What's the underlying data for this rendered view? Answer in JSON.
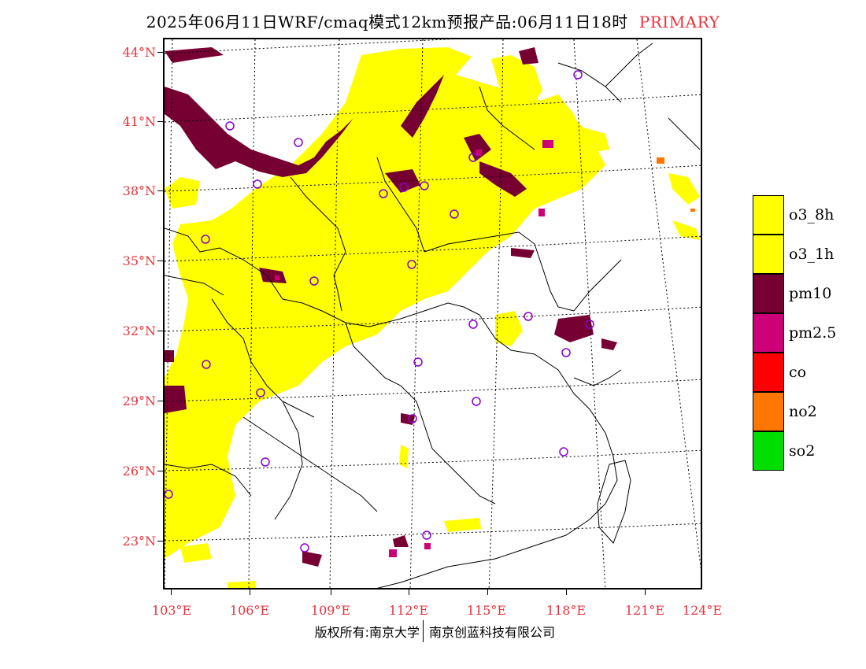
{
  "title": {
    "main": "2025年06月11日WRF/cmaq模式12km预报产品:06月11日18时",
    "tag": "PRIMARY"
  },
  "map": {
    "lat_labels": [
      "44°N",
      "41°N",
      "38°N",
      "35°N",
      "32°N",
      "29°N",
      "26°N",
      "23°N"
    ],
    "lon_labels": [
      "103°E",
      "106°E",
      "109°E",
      "112°E",
      "115°E",
      "118°E",
      "121°E",
      "124°E"
    ],
    "colors": {
      "o3_8h": "#ffff00",
      "o3_1h": "#ffff00",
      "pm10": "#770033",
      "pm2_5": "#cc0077",
      "co": "#ff0000",
      "no2": "#ff7700",
      "so2": "#00dd00",
      "station_marker": "#8800cc"
    }
  },
  "legend": {
    "items": [
      {
        "label": "o3_8h",
        "color": "#ffff00"
      },
      {
        "label": "o3_1h",
        "color": "#ffff00"
      },
      {
        "label": "pm10",
        "color": "#770033"
      },
      {
        "label": "pm2.5",
        "color": "#cc0077"
      },
      {
        "label": "co",
        "color": "#ff0000"
      },
      {
        "label": "no2",
        "color": "#ff7700"
      },
      {
        "label": "so2",
        "color": "#00dd00"
      }
    ]
  },
  "footer": {
    "copyright": "版权所有:南京大学",
    "company": "南京创蓝科技有限公司"
  }
}
